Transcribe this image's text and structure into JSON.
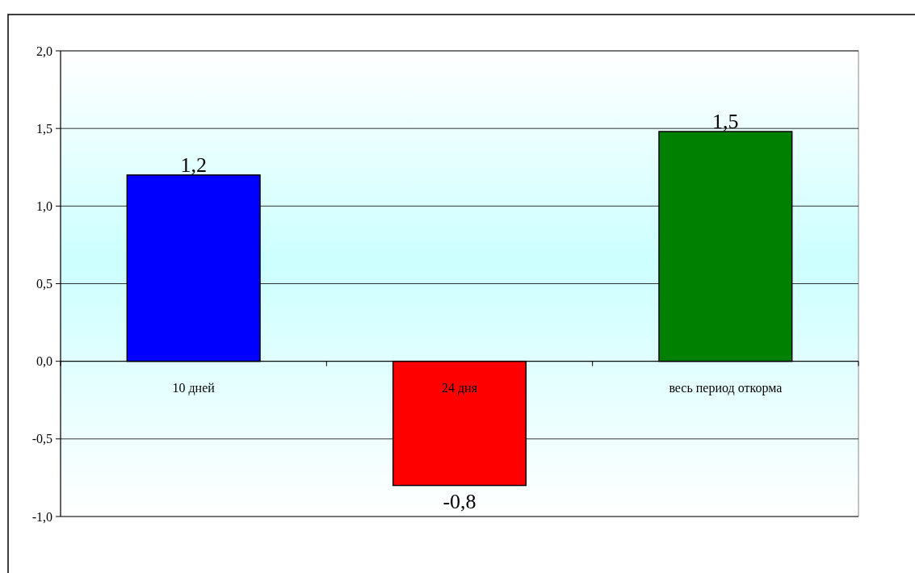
{
  "chart_data": {
    "type": "bar",
    "categories": [
      "10 дней",
      "24 дня",
      "весь период откорма"
    ],
    "values": [
      1.2,
      -0.8,
      1.48
    ],
    "colors": [
      "#0000ff",
      "#ff0000",
      "#008000"
    ],
    "value_labels": [
      "1,2",
      "-0,8",
      "1,5"
    ],
    "ylim": [
      -1,
      2
    ],
    "yticks": [
      {
        "value": -1,
        "label": "-1,0"
      },
      {
        "value": -0.5,
        "label": "-0,5"
      },
      {
        "value": 0,
        "label": "0,0"
      },
      {
        "value": 0.5,
        "label": "0,5"
      },
      {
        "value": 1,
        "label": "1,0"
      },
      {
        "value": 1.5,
        "label": "1,5"
      },
      {
        "value": 2,
        "label": "2,0"
      }
    ],
    "grid": "y"
  }
}
